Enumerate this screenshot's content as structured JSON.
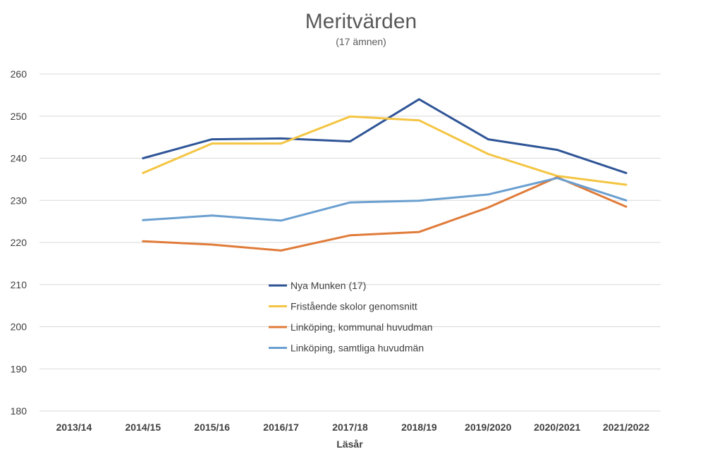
{
  "chart_data": {
    "type": "line",
    "title": "Meritvärden",
    "subtitle": "(17 ämnen)",
    "xlabel": "Läsår",
    "ylabel": "",
    "ylim": [
      180,
      260
    ],
    "yticks": [
      180,
      190,
      200,
      210,
      220,
      230,
      240,
      250,
      260
    ],
    "grid": true,
    "legend_position": "center",
    "categories": [
      "2013/14",
      "2014/15",
      "2015/16",
      "2016/17",
      "2017/18",
      "2018/19",
      "2019/2020",
      "2020/2021",
      "2021/2022"
    ],
    "series": [
      {
        "name": "Nya Munken (17)",
        "color": "#2f5597",
        "values": [
          null,
          240,
          244.5,
          244.7,
          244,
          254,
          244.5,
          242,
          236.5
        ]
      },
      {
        "name": "Fristående skolor genomsnitt",
        "color": "#f4c542",
        "values": [
          null,
          236.5,
          243.5,
          243.5,
          249.9,
          249,
          241,
          235.8,
          233.7
        ]
      },
      {
        "name": "Linköping, kommunal huvudman",
        "color": "#e07b39",
        "values": [
          null,
          220.3,
          219.5,
          218.1,
          221.7,
          222.5,
          228.3,
          235.5,
          228.5
        ]
      },
      {
        "name": "Linköping, samtliga huvudmän",
        "color": "#6a9fd0",
        "values": [
          null,
          225.3,
          226.4,
          225.2,
          229.5,
          229.9,
          231.4,
          235.3,
          230
        ]
      }
    ]
  }
}
